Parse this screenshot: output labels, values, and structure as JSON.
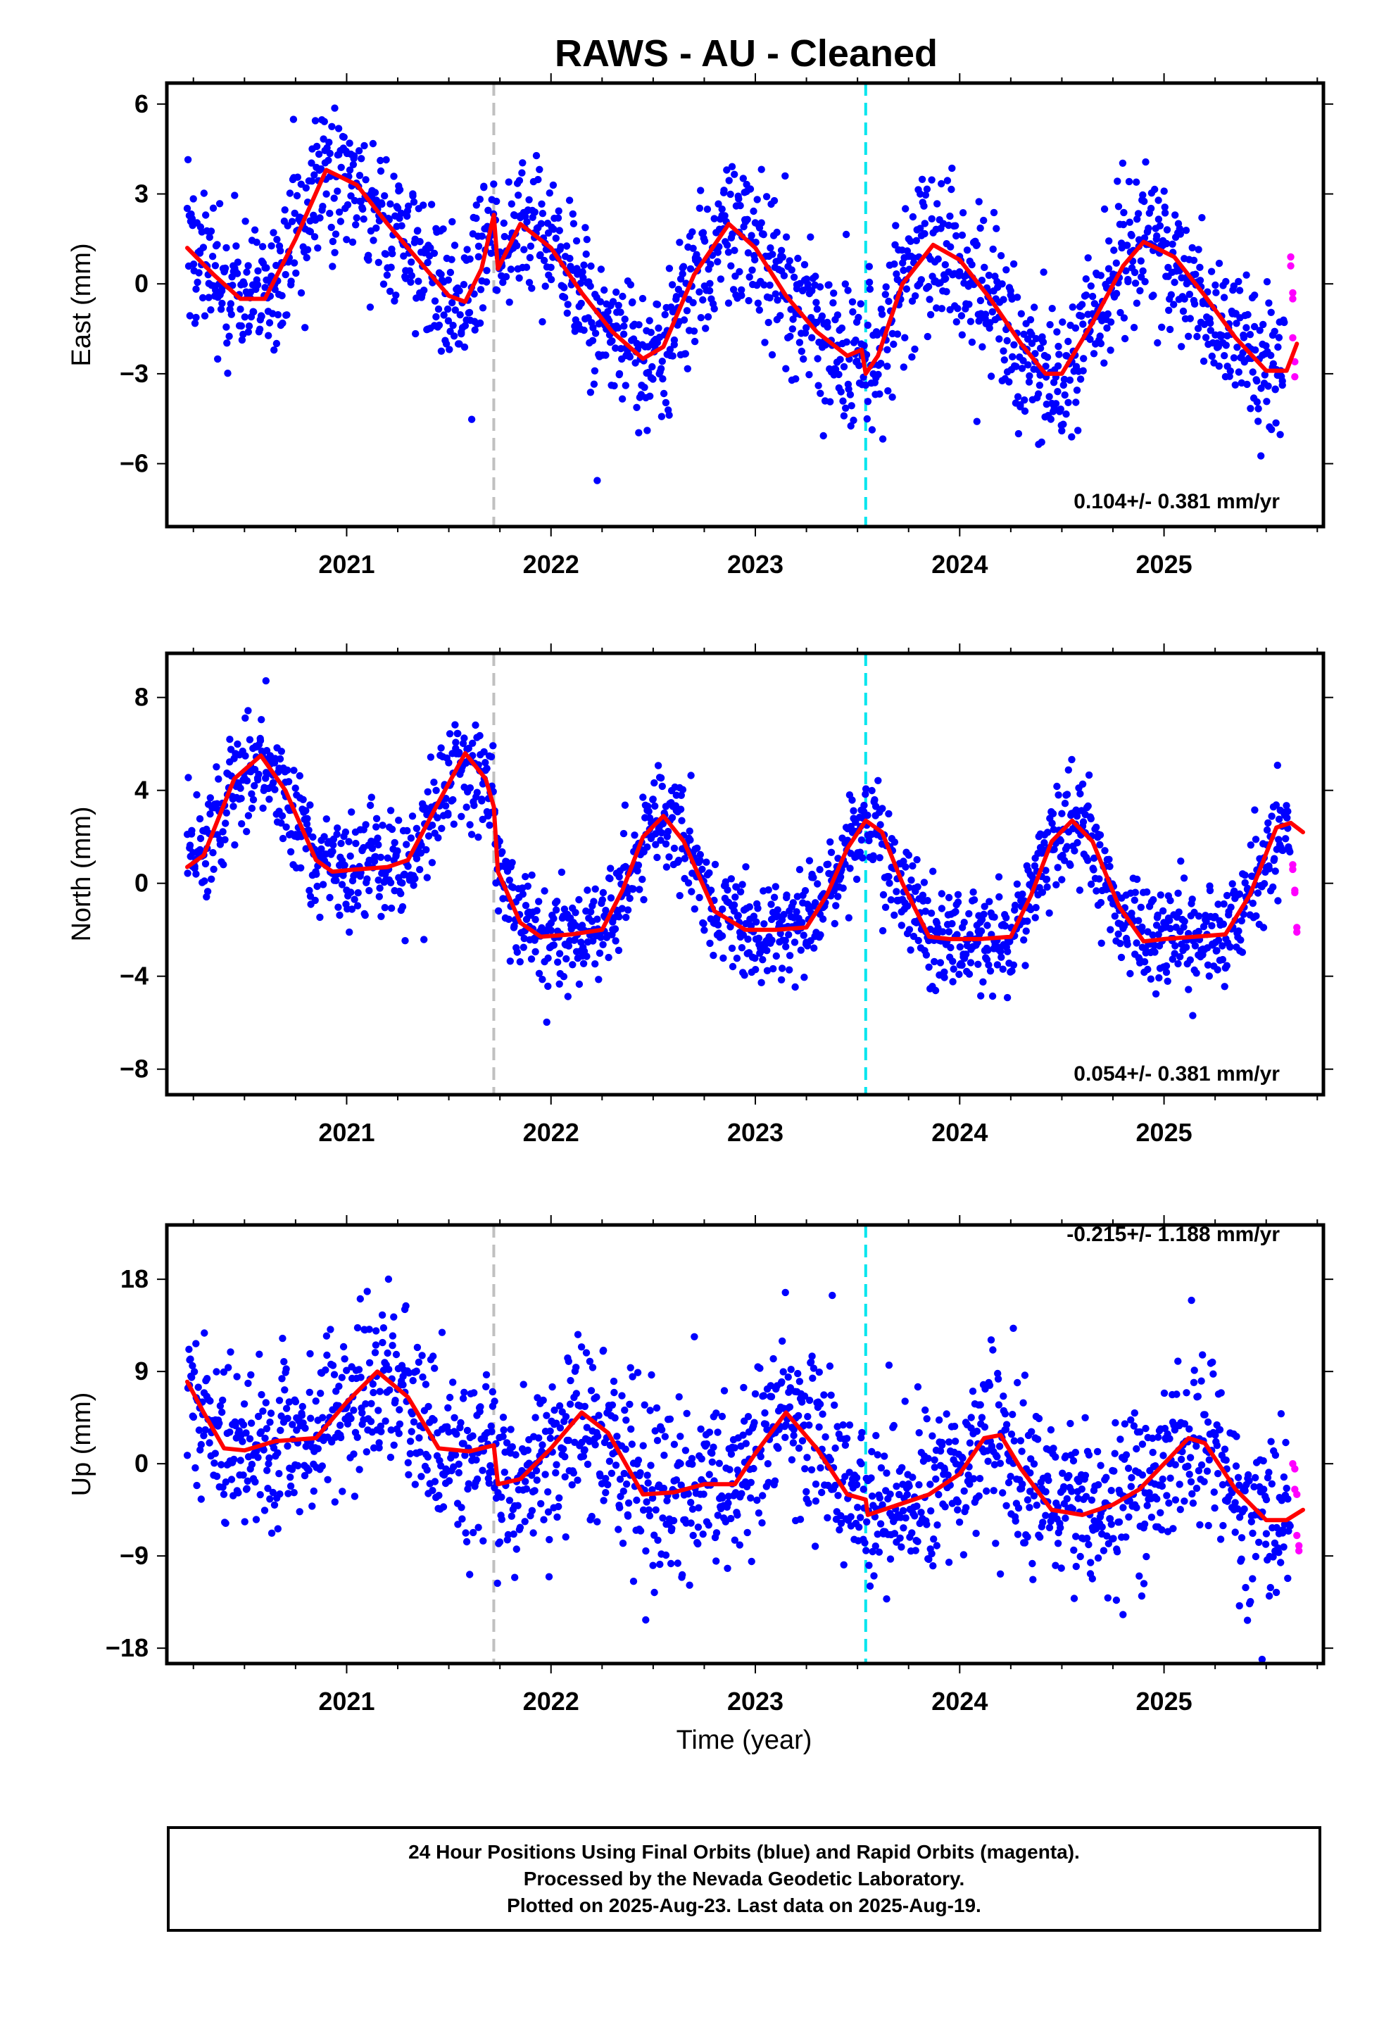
{
  "title": "RAWS  - AU - Cleaned",
  "xlabel": "Time (year)",
  "colors": {
    "final_points": "#0000ff",
    "rapid_points": "#ff00ff",
    "model_curve": "#ff0000",
    "equipment_change_line": "#c0c0c0",
    "earthquake_line": "#00e5ee"
  },
  "chart_data": [
    {
      "type": "scatter",
      "component": "East",
      "ylabel": "East (mm)",
      "rate_text": "0.104+/- 0.381 mm/yr",
      "xlim": [
        2020.12,
        2025.78
      ],
      "ylim": [
        -8.1,
        6.7
      ],
      "yticks": [
        6,
        3,
        0,
        -3,
        -6
      ],
      "ytick_labels": [
        "6",
        "3",
        "0",
        "−3",
        "−6"
      ],
      "xticks": [
        2021,
        2022,
        2023,
        2024,
        2025
      ],
      "xtick_labels": [
        "2021",
        "2022",
        "2023",
        "2024",
        "2025"
      ],
      "vlines": [
        {
          "x": 2021.72,
          "kind": "equipment_change"
        },
        {
          "x": 2023.54,
          "kind": "earthquake"
        }
      ],
      "model": [
        [
          2020.22,
          1.2
        ],
        [
          2020.35,
          0.3
        ],
        [
          2020.48,
          -0.5
        ],
        [
          2020.6,
          -0.5
        ],
        [
          2020.75,
          1.5
        ],
        [
          2020.9,
          3.8
        ],
        [
          2021.05,
          3.3
        ],
        [
          2021.2,
          2.0
        ],
        [
          2021.35,
          0.8
        ],
        [
          2021.5,
          -0.4
        ],
        [
          2021.58,
          -0.6
        ],
        [
          2021.66,
          0.5
        ],
        [
          2021.72,
          2.3
        ],
        [
          2021.74,
          0.5
        ],
        [
          2021.85,
          2.0
        ],
        [
          2022.0,
          1.2
        ],
        [
          2022.15,
          -0.3
        ],
        [
          2022.3,
          -1.6
        ],
        [
          2022.45,
          -2.5
        ],
        [
          2022.55,
          -2.1
        ],
        [
          2022.7,
          0.3
        ],
        [
          2022.87,
          2.0
        ],
        [
          2023.0,
          1.2
        ],
        [
          2023.15,
          -0.4
        ],
        [
          2023.3,
          -1.6
        ],
        [
          2023.45,
          -2.4
        ],
        [
          2023.52,
          -2.2
        ],
        [
          2023.54,
          -3.0
        ],
        [
          2023.6,
          -2.4
        ],
        [
          2023.72,
          0.0
        ],
        [
          2023.87,
          1.3
        ],
        [
          2024.0,
          0.8
        ],
        [
          2024.15,
          -0.5
        ],
        [
          2024.3,
          -2.0
        ],
        [
          2024.42,
          -3.0
        ],
        [
          2024.5,
          -3.0
        ],
        [
          2024.65,
          -1.3
        ],
        [
          2024.8,
          0.6
        ],
        [
          2024.9,
          1.4
        ],
        [
          2025.05,
          0.9
        ],
        [
          2025.2,
          -0.4
        ],
        [
          2025.35,
          -1.8
        ],
        [
          2025.5,
          -2.9
        ],
        [
          2025.6,
          -2.9
        ],
        [
          2025.65,
          -2.0
        ]
      ],
      "scatter_final": {
        "count": 1700,
        "noise_mm": 1.2
      },
      "rapid_points": [
        [
          2025.62,
          0.9
        ],
        [
          2025.62,
          0.6
        ],
        [
          2025.63,
          -0.3
        ],
        [
          2025.63,
          -0.5
        ],
        [
          2025.63,
          -1.8
        ],
        [
          2025.64,
          -2.6
        ],
        [
          2025.64,
          -3.1
        ]
      ]
    },
    {
      "type": "scatter",
      "component": "North",
      "ylabel": "North (mm)",
      "rate_text": "0.054+/- 0.381 mm/yr",
      "xlim": [
        2020.12,
        2025.78
      ],
      "ylim": [
        -9.1,
        9.9
      ],
      "yticks": [
        8,
        4,
        0,
        -4,
        -8
      ],
      "ytick_labels": [
        "8",
        "4",
        "0",
        "−4",
        "−8"
      ],
      "xticks": [
        2021,
        2022,
        2023,
        2024,
        2025
      ],
      "xtick_labels": [
        "2021",
        "2022",
        "2023",
        "2024",
        "2025"
      ],
      "vlines": [
        {
          "x": 2021.72,
          "kind": "equipment_change"
        },
        {
          "x": 2023.54,
          "kind": "earthquake"
        }
      ],
      "model": [
        [
          2020.22,
          0.7
        ],
        [
          2020.3,
          1.2
        ],
        [
          2020.45,
          4.5
        ],
        [
          2020.58,
          5.5
        ],
        [
          2020.7,
          4.0
        ],
        [
          2020.85,
          1.0
        ],
        [
          2020.93,
          0.5
        ],
        [
          2021.05,
          0.6
        ],
        [
          2021.2,
          0.7
        ],
        [
          2021.3,
          1.0
        ],
        [
          2021.45,
          3.5
        ],
        [
          2021.58,
          5.6
        ],
        [
          2021.68,
          4.5
        ],
        [
          2021.72,
          3.3
        ],
        [
          2021.74,
          0.5
        ],
        [
          2021.85,
          -1.7
        ],
        [
          2021.95,
          -2.3
        ],
        [
          2022.1,
          -2.2
        ],
        [
          2022.25,
          -2.0
        ],
        [
          2022.35,
          -0.3
        ],
        [
          2022.45,
          2.0
        ],
        [
          2022.55,
          2.9
        ],
        [
          2022.65,
          1.8
        ],
        [
          2022.8,
          -1.2
        ],
        [
          2022.95,
          -2.0
        ],
        [
          2023.1,
          -2.0
        ],
        [
          2023.25,
          -1.9
        ],
        [
          2023.35,
          -0.5
        ],
        [
          2023.45,
          1.5
        ],
        [
          2023.54,
          2.7
        ],
        [
          2023.62,
          2.2
        ],
        [
          2023.72,
          0.0
        ],
        [
          2023.85,
          -2.3
        ],
        [
          2023.95,
          -2.4
        ],
        [
          2024.1,
          -2.4
        ],
        [
          2024.25,
          -2.3
        ],
        [
          2024.35,
          -0.5
        ],
        [
          2024.45,
          1.8
        ],
        [
          2024.55,
          2.7
        ],
        [
          2024.65,
          1.8
        ],
        [
          2024.78,
          -1.0
        ],
        [
          2024.9,
          -2.5
        ],
        [
          2025.0,
          -2.4
        ],
        [
          2025.15,
          -2.3
        ],
        [
          2025.3,
          -2.2
        ],
        [
          2025.42,
          -0.5
        ],
        [
          2025.55,
          2.4
        ],
        [
          2025.62,
          2.6
        ],
        [
          2025.68,
          2.2
        ]
      ],
      "scatter_final": {
        "count": 1700,
        "noise_mm": 1.1
      },
      "rapid_points": [
        [
          2025.63,
          0.8
        ],
        [
          2025.63,
          0.6
        ],
        [
          2025.64,
          -0.3
        ],
        [
          2025.64,
          -0.4
        ],
        [
          2025.65,
          -1.9
        ],
        [
          2025.65,
          -2.1
        ]
      ]
    },
    {
      "type": "scatter",
      "component": "Up",
      "ylabel": "Up (mm)",
      "rate_text": "-0.215+/- 1.188 mm/yr",
      "xlim": [
        2020.12,
        2025.78
      ],
      "ylim": [
        -19.5,
        23.3
      ],
      "yticks": [
        18,
        9,
        0,
        -9,
        -18
      ],
      "ytick_labels": [
        "18",
        "9",
        "0",
        "−9",
        "−18"
      ],
      "xticks": [
        2021,
        2022,
        2023,
        2024,
        2025
      ],
      "xtick_labels": [
        "2021",
        "2022",
        "2023",
        "2024",
        "2025"
      ],
      "vlines": [
        {
          "x": 2021.72,
          "kind": "equipment_change"
        },
        {
          "x": 2023.54,
          "kind": "earthquake"
        }
      ],
      "model": [
        [
          2020.22,
          8.0
        ],
        [
          2020.3,
          5.0
        ],
        [
          2020.4,
          1.5
        ],
        [
          2020.5,
          1.3
        ],
        [
          2020.65,
          2.2
        ],
        [
          2020.85,
          2.5
        ],
        [
          2021.0,
          6.0
        ],
        [
          2021.15,
          9.0
        ],
        [
          2021.3,
          6.5
        ],
        [
          2021.45,
          1.5
        ],
        [
          2021.6,
          1.2
        ],
        [
          2021.72,
          1.8
        ],
        [
          2021.74,
          -2.0
        ],
        [
          2021.85,
          -1.5
        ],
        [
          2022.0,
          1.5
        ],
        [
          2022.15,
          5.0
        ],
        [
          2022.28,
          3.0
        ],
        [
          2022.45,
          -3.0
        ],
        [
          2022.6,
          -2.8
        ],
        [
          2022.75,
          -2.0
        ],
        [
          2022.9,
          -2.0
        ],
        [
          2023.0,
          1.0
        ],
        [
          2023.15,
          5.0
        ],
        [
          2023.3,
          1.5
        ],
        [
          2023.45,
          -3.0
        ],
        [
          2023.54,
          -3.5
        ],
        [
          2023.55,
          -5.0
        ],
        [
          2023.7,
          -4.0
        ],
        [
          2023.85,
          -3.0
        ],
        [
          2024.0,
          -1.0
        ],
        [
          2024.12,
          2.5
        ],
        [
          2024.2,
          2.8
        ],
        [
          2024.3,
          -0.5
        ],
        [
          2024.45,
          -4.5
        ],
        [
          2024.6,
          -5.0
        ],
        [
          2024.75,
          -4.0
        ],
        [
          2024.88,
          -2.5
        ],
        [
          2025.0,
          0.0
        ],
        [
          2025.12,
          2.5
        ],
        [
          2025.2,
          2.0
        ],
        [
          2025.35,
          -2.5
        ],
        [
          2025.5,
          -5.5
        ],
        [
          2025.6,
          -5.5
        ],
        [
          2025.68,
          -4.5
        ]
      ],
      "scatter_final": {
        "count": 1700,
        "noise_mm": 4.0
      },
      "rapid_points": [
        [
          2025.63,
          0.0
        ],
        [
          2025.64,
          -0.5
        ],
        [
          2025.64,
          -2.5
        ],
        [
          2025.65,
          -3.0
        ],
        [
          2025.65,
          -7.0
        ],
        [
          2025.66,
          -8.0
        ],
        [
          2025.66,
          -8.5
        ]
      ]
    }
  ],
  "footer": {
    "line1": "24 Hour Positions Using Final Orbits (blue) and Rapid Orbits (magenta).",
    "line2": "Processed by the Nevada Geodetic Laboratory.",
    "line3": "Plotted on 2025-Aug-23. Last data on 2025-Aug-19."
  }
}
